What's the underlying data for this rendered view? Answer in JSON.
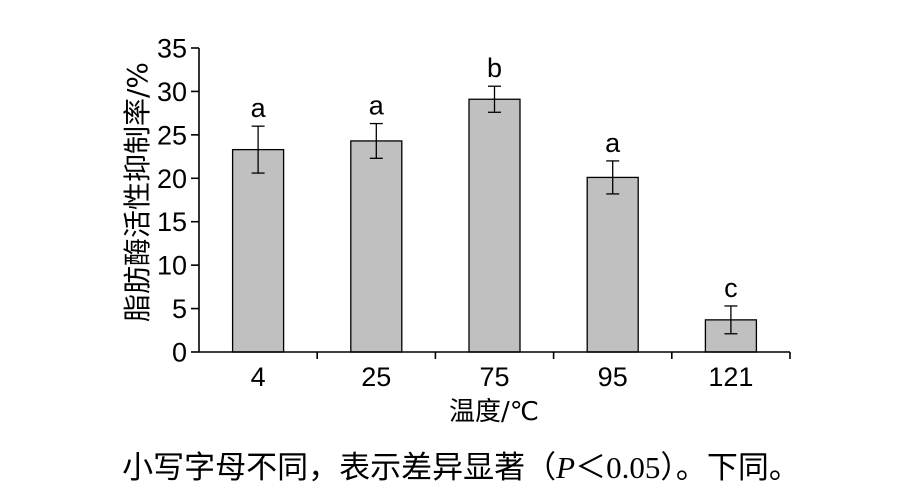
{
  "chart_data": {
    "type": "bar",
    "categories": [
      "4",
      "25",
      "75",
      "95",
      "121"
    ],
    "values": [
      23.3,
      24.3,
      29.1,
      20.1,
      3.7
    ],
    "error": [
      2.7,
      2.0,
      1.5,
      1.9,
      1.6
    ],
    "significance_letters": [
      "a",
      "a",
      "b",
      "a",
      "c"
    ],
    "xlabel": "温度/℃",
    "ylabel": "脂肪酶活性抑制率/%",
    "ylim": [
      0,
      35
    ],
    "yticks": [
      0,
      5,
      10,
      15,
      20,
      25,
      30,
      35
    ],
    "bar_color": "#c0c0c0",
    "grid": false
  },
  "caption": {
    "before": "小写字母不同，表示差异显著（",
    "italic": "P",
    "after": "＜0.05）。下同。"
  }
}
